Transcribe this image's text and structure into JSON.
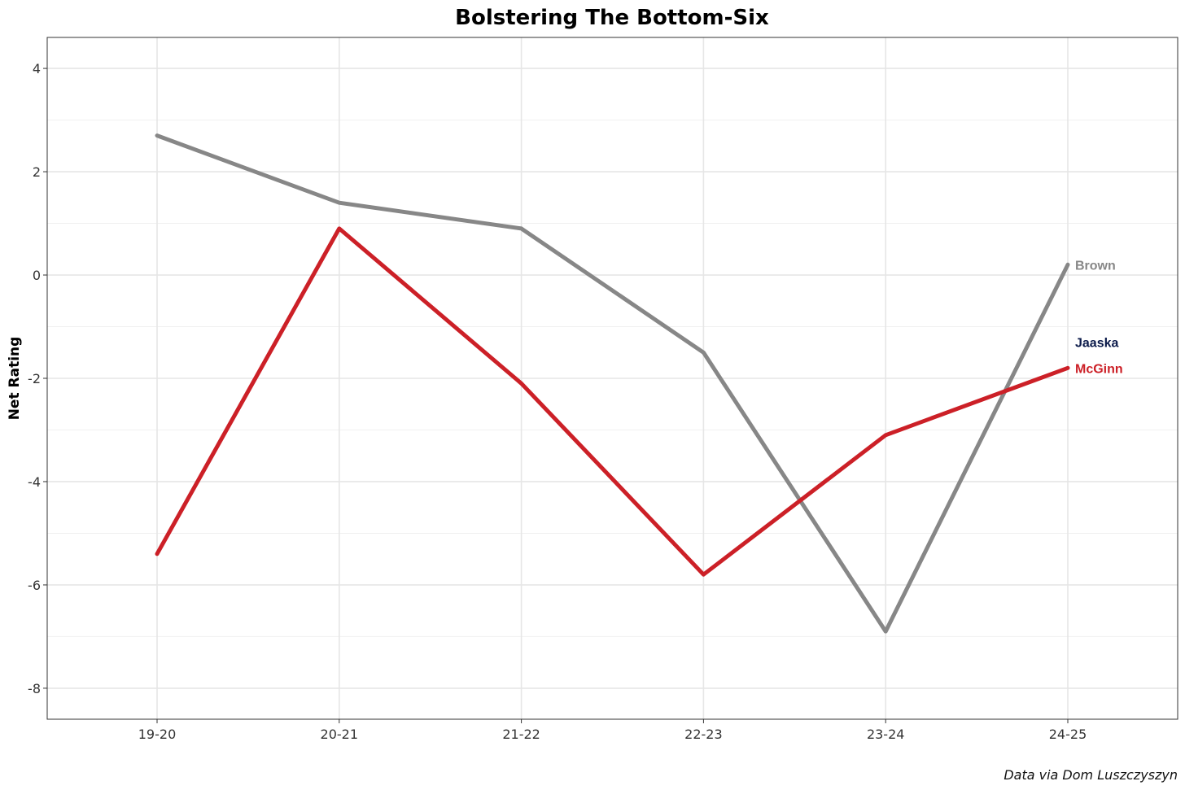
{
  "chart_data": {
    "type": "line",
    "title": "Bolstering The Bottom-Six",
    "ylabel": "Net Rating",
    "xlabel": "",
    "caption": "Data via Dom Luszczyszyn",
    "categories": [
      "19-20",
      "20-21",
      "21-22",
      "22-23",
      "23-24",
      "24-25"
    ],
    "ylim": [
      -8.6,
      4.6
    ],
    "yticks": [
      4,
      2,
      0,
      -2,
      -4,
      -6,
      -8
    ],
    "grid": true,
    "series": [
      {
        "name": "Brown",
        "color": "#878787",
        "values": [
          2.7,
          1.4,
          0.9,
          -1.5,
          -6.9,
          0.2
        ]
      },
      {
        "name": "McGinn",
        "color": "#cc2027",
        "values": [
          -5.4,
          0.9,
          -2.1,
          -5.8,
          -3.1,
          -1.8
        ]
      }
    ],
    "end_labels": [
      {
        "text": "Brown",
        "color": "#878787",
        "y": 0.2
      },
      {
        "text": "Jaaska",
        "color": "#0b1a4a",
        "y": -1.3
      },
      {
        "text": "McGinn",
        "color": "#cc2027",
        "y": -1.8
      }
    ]
  }
}
